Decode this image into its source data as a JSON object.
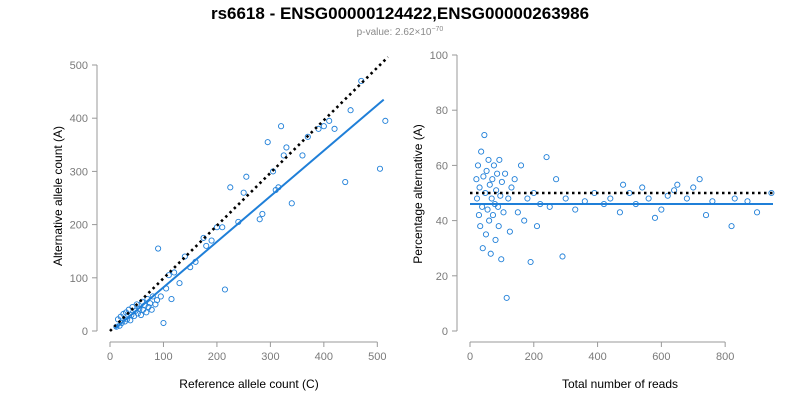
{
  "figure": {
    "title": "rs6618 - ENSG00000124422,ENSG00000263986",
    "pvalue_prefix": "p-value: 2.62×10",
    "pvalue_exponent": "−70"
  },
  "colors": {
    "points": "#1f7fd8",
    "fit": "#1f7fd8",
    "reference": "#000000",
    "axis": "#999999",
    "tick_text": "#7a7a7a"
  },
  "chart_data": [
    {
      "type": "scatter",
      "xlabel": "Reference allele count (C)",
      "ylabel": "Alternative allele count (A)",
      "xlim": [
        0,
        520
      ],
      "ylim": [
        0,
        500
      ],
      "xticks": [
        0,
        100,
        200,
        300,
        400,
        500
      ],
      "yticks": [
        0,
        100,
        200,
        300,
        400,
        500
      ],
      "reference_line": {
        "style": "dotted",
        "from": [
          0,
          0
        ],
        "to": [
          520,
          515
        ]
      },
      "fit_line": {
        "style": "solid",
        "from": [
          10,
          5
        ],
        "to": [
          512,
          435
        ]
      },
      "points": [
        [
          12,
          8
        ],
        [
          15,
          22
        ],
        [
          18,
          10
        ],
        [
          20,
          27
        ],
        [
          22,
          15
        ],
        [
          25,
          32
        ],
        [
          28,
          18
        ],
        [
          30,
          35
        ],
        [
          32,
          22
        ],
        [
          35,
          40
        ],
        [
          38,
          20
        ],
        [
          40,
          30
        ],
        [
          42,
          45
        ],
        [
          45,
          28
        ],
        [
          48,
          38
        ],
        [
          50,
          50
        ],
        [
          52,
          33
        ],
        [
          55,
          42
        ],
        [
          58,
          30
        ],
        [
          60,
          55
        ],
        [
          62,
          40
        ],
        [
          65,
          48
        ],
        [
          68,
          35
        ],
        [
          70,
          60
        ],
        [
          72,
          45
        ],
        [
          75,
          52
        ],
        [
          78,
          40
        ],
        [
          80,
          65
        ],
        [
          85,
          50
        ],
        [
          88,
          58
        ],
        [
          90,
          155
        ],
        [
          95,
          65
        ],
        [
          100,
          15
        ],
        [
          105,
          80
        ],
        [
          110,
          105
        ],
        [
          115,
          60
        ],
        [
          120,
          110
        ],
        [
          130,
          90
        ],
        [
          140,
          140
        ],
        [
          150,
          120
        ],
        [
          160,
          130
        ],
        [
          175,
          175
        ],
        [
          180,
          160
        ],
        [
          190,
          170
        ],
        [
          200,
          195
        ],
        [
          210,
          195
        ],
        [
          215,
          78
        ],
        [
          225,
          270
        ],
        [
          240,
          205
        ],
        [
          250,
          260
        ],
        [
          255,
          290
        ],
        [
          280,
          210
        ],
        [
          285,
          220
        ],
        [
          295,
          355
        ],
        [
          305,
          300
        ],
        [
          310,
          265
        ],
        [
          315,
          270
        ],
        [
          320,
          385
        ],
        [
          325,
          330
        ],
        [
          330,
          345
        ],
        [
          340,
          240
        ],
        [
          360,
          330
        ],
        [
          370,
          365
        ],
        [
          390,
          380
        ],
        [
          400,
          385
        ],
        [
          410,
          395
        ],
        [
          420,
          380
        ],
        [
          440,
          280
        ],
        [
          450,
          415
        ],
        [
          470,
          470
        ],
        [
          505,
          305
        ],
        [
          515,
          395
        ]
      ]
    },
    {
      "type": "scatter",
      "xlabel": "Total number of reads",
      "ylabel": "Percentage alternative (A)",
      "xlim": [
        0,
        950
      ],
      "ylim": [
        0,
        100
      ],
      "xticks": [
        0,
        200,
        400,
        600,
        800
      ],
      "yticks": [
        0,
        20,
        40,
        60,
        80,
        100
      ],
      "reference_line": {
        "style": "dotted",
        "y": 50
      },
      "fit_line": {
        "style": "solid",
        "y": 46
      },
      "points": [
        [
          20,
          55
        ],
        [
          22,
          48
        ],
        [
          25,
          60
        ],
        [
          28,
          42
        ],
        [
          30,
          52
        ],
        [
          32,
          38
        ],
        [
          35,
          65
        ],
        [
          38,
          45
        ],
        [
          40,
          30
        ],
        [
          42,
          56
        ],
        [
          45,
          71
        ],
        [
          48,
          50
        ],
        [
          50,
          35
        ],
        [
          52,
          58
        ],
        [
          55,
          44
        ],
        [
          58,
          62
        ],
        [
          60,
          40
        ],
        [
          62,
          53
        ],
        [
          65,
          28
        ],
        [
          68,
          48
        ],
        [
          70,
          55
        ],
        [
          72,
          42
        ],
        [
          75,
          60
        ],
        [
          78,
          46
        ],
        [
          80,
          33
        ],
        [
          82,
          51
        ],
        [
          85,
          57
        ],
        [
          88,
          45
        ],
        [
          90,
          38
        ],
        [
          92,
          62
        ],
        [
          95,
          49
        ],
        [
          98,
          26
        ],
        [
          100,
          54
        ],
        [
          105,
          43
        ],
        [
          110,
          57
        ],
        [
          115,
          12
        ],
        [
          120,
          48
        ],
        [
          125,
          36
        ],
        [
          130,
          52
        ],
        [
          140,
          55
        ],
        [
          150,
          43
        ],
        [
          160,
          60
        ],
        [
          170,
          40
        ],
        [
          180,
          48
        ],
        [
          190,
          25
        ],
        [
          200,
          50
        ],
        [
          210,
          38
        ],
        [
          220,
          46
        ],
        [
          240,
          63
        ],
        [
          250,
          45
        ],
        [
          270,
          55
        ],
        [
          290,
          27
        ],
        [
          300,
          48
        ],
        [
          330,
          44
        ],
        [
          360,
          47
        ],
        [
          390,
          50
        ],
        [
          420,
          46
        ],
        [
          440,
          48
        ],
        [
          470,
          43
        ],
        [
          480,
          53
        ],
        [
          500,
          50
        ],
        [
          520,
          46
        ],
        [
          540,
          52
        ],
        [
          560,
          48
        ],
        [
          580,
          41
        ],
        [
          600,
          44
        ],
        [
          620,
          49
        ],
        [
          640,
          51
        ],
        [
          650,
          53
        ],
        [
          680,
          48
        ],
        [
          700,
          52
        ],
        [
          720,
          55
        ],
        [
          740,
          42
        ],
        [
          760,
          47
        ],
        [
          820,
          38
        ],
        [
          830,
          48
        ],
        [
          870,
          47
        ],
        [
          900,
          43
        ],
        [
          945,
          50
        ]
      ]
    }
  ]
}
